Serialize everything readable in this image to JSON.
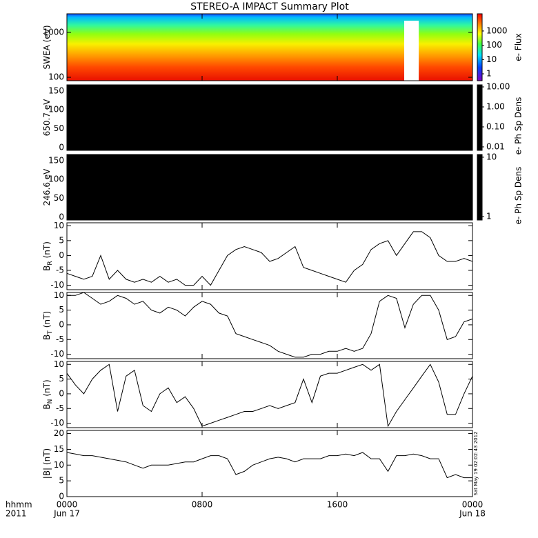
{
  "chart_data": [
    {
      "type": "spectrogram",
      "title": "STEREO-A IMPACT Summary Plot",
      "ylabel": "SWEA (eV)",
      "log_scale": true,
      "ylim": [
        84,
        2600
      ],
      "yticks": [
        100,
        1000
      ],
      "xlim": [
        0,
        24
      ],
      "xticks": [
        0,
        8,
        16,
        24
      ],
      "colormap": "rainbow",
      "gap": [
        19.96,
        20.82
      ],
      "colorbar": {
        "label": "e- Flux",
        "lim": [
          0.33,
          16000
        ],
        "ticks": [
          1,
          10,
          100,
          1000
        ],
        "colormap": "rainbow"
      }
    },
    {
      "type": "spectrogram",
      "ylabel": "650.7 eV",
      "log_scale": false,
      "ylim": [
        -7,
        166
      ],
      "yticks": [
        0,
        50,
        100,
        150
      ],
      "xlim": [
        0,
        24
      ],
      "xticks": [
        0,
        8,
        16,
        24
      ],
      "fill": "#000000",
      "colorbar": {
        "label": "e- Ph Sp Dens",
        "lim": [
          0.0067,
          12.7
        ],
        "ticks": [
          {
            "value": 10,
            "label": "10.00"
          },
          {
            "value": 1,
            "label": "1.00"
          },
          {
            "value": 0.1,
            "label": "0.10"
          },
          0.01
        ],
        "fill": "#000000"
      }
    },
    {
      "type": "spectrogram",
      "ylabel": "246.6 eV",
      "log_scale": false,
      "ylim": [
        -7,
        166
      ],
      "yticks": [
        0,
        50,
        100,
        150
      ],
      "xlim": [
        0,
        24
      ],
      "xticks": [
        0,
        8,
        16,
        24
      ],
      "fill": "#000000",
      "colorbar": {
        "label": "e- Ph Sp Dens",
        "lim": [
          0.875,
          11.1
        ],
        "ticks": [
          10,
          1
        ],
        "fill": "#000000"
      }
    },
    {
      "type": "line",
      "ylabel": "B",
      "ylabel_sub": "R",
      "ylabel_unit": "(nT)",
      "color": "#000000",
      "ylim": [
        -11.5,
        11
      ],
      "yticks": [
        -10,
        -5,
        0,
        5,
        10
      ],
      "xlim": [
        0,
        24
      ],
      "xticks": [
        0,
        8,
        16,
        24
      ],
      "x": [
        0,
        0.5,
        1,
        1.5,
        2,
        2.5,
        3,
        3.5,
        4,
        4.5,
        5,
        5.5,
        6,
        6.5,
        7,
        7.5,
        8,
        8.5,
        9,
        9.5,
        10,
        10.5,
        11,
        11.5,
        12,
        12.5,
        13,
        13.5,
        14,
        14.5,
        15,
        15.5,
        16,
        16.5,
        17,
        17.5,
        18,
        18.5,
        19,
        19.5,
        20,
        20.5,
        21,
        21.5,
        22,
        22.5,
        23,
        23.5,
        24
      ],
      "values": [
        -6,
        -7,
        -8,
        -7,
        0,
        -8,
        -5,
        -8,
        -9,
        -8,
        -9,
        -7,
        -9,
        -8,
        -10,
        -10,
        -7,
        -10,
        -5,
        0,
        2,
        3,
        2,
        1,
        -2,
        -1,
        1,
        3,
        -4,
        -5,
        -6,
        -7,
        -8,
        -9,
        -5,
        -3,
        2,
        4,
        5,
        0,
        4,
        8,
        8,
        6,
        0,
        -2,
        -2,
        -1,
        -2
      ]
    },
    {
      "type": "line",
      "ylabel": "B",
      "ylabel_sub": "T",
      "ylabel_unit": "(nT)",
      "color": "#000000",
      "ylim": [
        -11.5,
        11
      ],
      "yticks": [
        -10,
        -5,
        0,
        5,
        10
      ],
      "xlim": [
        0,
        24
      ],
      "xticks": [
        0,
        8,
        16,
        24
      ],
      "x": [
        0,
        0.5,
        1,
        1.5,
        2,
        2.5,
        3,
        3.5,
        4,
        4.5,
        5,
        5.5,
        6,
        6.5,
        7,
        7.5,
        8,
        8.5,
        9,
        9.5,
        10,
        10.5,
        11,
        11.5,
        12,
        12.5,
        13,
        13.5,
        14,
        14.5,
        15,
        15.5,
        16,
        16.5,
        17,
        17.5,
        18,
        18.5,
        19,
        19.5,
        20,
        20.5,
        21,
        21.5,
        22,
        22.5,
        23,
        23.5,
        24
      ],
      "values": [
        10,
        10,
        11,
        9,
        7,
        8,
        10,
        9,
        7,
        8,
        5,
        4,
        6,
        5,
        3,
        6,
        8,
        7,
        4,
        3,
        -3,
        -4,
        -5,
        -6,
        -7,
        -9,
        -10,
        -11,
        -11,
        -10,
        -10,
        -9,
        -9,
        -8,
        -9,
        -8,
        -3,
        8,
        10,
        9,
        -1,
        7,
        10,
        10,
        5,
        -5,
        -4,
        1,
        2
      ]
    },
    {
      "type": "line",
      "ylabel": "B",
      "ylabel_sub": "N",
      "ylabel_unit": "(nT)",
      "color": "#000000",
      "ylim": [
        -11.5,
        11
      ],
      "yticks": [
        -10,
        -5,
        0,
        5,
        10
      ],
      "xlim": [
        0,
        24
      ],
      "xticks": [
        0,
        8,
        16,
        24
      ],
      "x": [
        0,
        0.5,
        1,
        1.5,
        2,
        2.5,
        3,
        3.5,
        4,
        4.5,
        5,
        5.5,
        6,
        6.5,
        7,
        7.5,
        8,
        8.5,
        9,
        9.5,
        10,
        10.5,
        11,
        11.5,
        12,
        12.5,
        13,
        13.5,
        14,
        14.5,
        15,
        15.5,
        16,
        16.5,
        17,
        17.5,
        18,
        18.5,
        19,
        19.5,
        20,
        20.5,
        21,
        21.5,
        22,
        22.5,
        23,
        23.5,
        24
      ],
      "values": [
        7,
        3,
        0,
        5,
        8,
        10,
        -6,
        6,
        8,
        -4,
        -6,
        0,
        2,
        -3,
        -1,
        -5,
        -11,
        -10,
        -9,
        -8,
        -7,
        -6,
        -6,
        -5,
        -4,
        -5,
        -4,
        -3,
        5,
        -3,
        6,
        7,
        7,
        8,
        9,
        10,
        8,
        10,
        -11,
        -6,
        -2,
        2,
        6,
        10,
        4,
        -7,
        -7,
        0,
        6
      ]
    },
    {
      "type": "line",
      "ylabel": "|B| (nT)",
      "color": "#000000",
      "ylim": [
        0,
        21
      ],
      "yticks": [
        0,
        5,
        10,
        15,
        20
      ],
      "xlim": [
        0,
        24
      ],
      "xticks": [
        {
          "value": 0,
          "label": "0000"
        },
        {
          "value": 8,
          "label": "0800"
        },
        {
          "value": 16,
          "label": "1600"
        },
        {
          "value": 24,
          "label": "0000"
        }
      ],
      "date_labels": [
        {
          "value": 0,
          "label": "Jun 17"
        },
        {
          "value": 24,
          "label": "Jun 18"
        }
      ],
      "xlabel": "hhmm",
      "year": "2011",
      "timestamp": "Sat May 19 02:02:43 2012",
      "x": [
        0,
        0.5,
        1,
        1.5,
        2,
        2.5,
        3,
        3.5,
        4,
        4.5,
        5,
        5.5,
        6,
        6.5,
        7,
        7.5,
        8,
        8.5,
        9,
        9.5,
        10,
        10.5,
        11,
        11.5,
        12,
        12.5,
        13,
        13.5,
        14,
        14.5,
        15,
        15.5,
        16,
        16.5,
        17,
        17.5,
        18,
        18.5,
        19,
        19.5,
        20,
        20.5,
        21,
        21.5,
        22,
        22.5,
        23,
        23.5,
        24
      ],
      "values": [
        14,
        13.5,
        13,
        13,
        12.5,
        12,
        11.5,
        11,
        10,
        9,
        10,
        10,
        10,
        10.5,
        11,
        11,
        12,
        13,
        13,
        12,
        7,
        8,
        10,
        11,
        12,
        12.5,
        12,
        11,
        12,
        12,
        12,
        13,
        13,
        13.5,
        13,
        14,
        12,
        12,
        8,
        13,
        13,
        13.5,
        13,
        12,
        12,
        6,
        7,
        6,
        6
      ]
    }
  ]
}
